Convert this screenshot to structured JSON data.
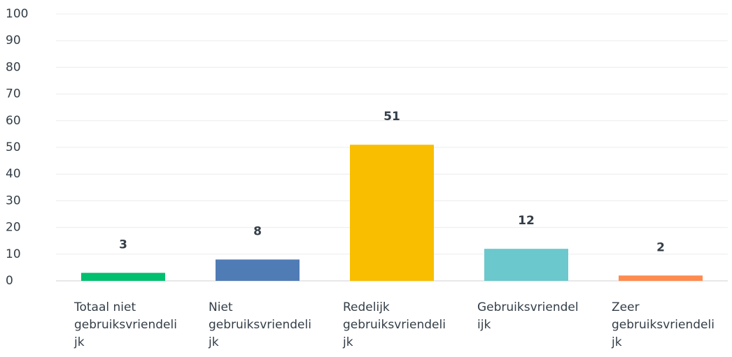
{
  "chart_data": {
    "type": "bar",
    "categories": [
      "Totaal niet gebruiksvriendelijk",
      "Niet gebruiksvriendelijk",
      "Redelijk gebruiksvriendelijk",
      "Gebruiksvriendelijk",
      "Zeer gebruiksvriendelijk"
    ],
    "values": [
      3,
      8,
      51,
      12,
      2
    ],
    "colors": [
      "#00bf6f",
      "#507cb6",
      "#f9be00",
      "#6bc8cd",
      "#ff8b4f"
    ],
    "ylim": [
      0,
      100
    ],
    "yticks": [
      0,
      10,
      20,
      30,
      40,
      50,
      60,
      70,
      80,
      90,
      100
    ],
    "grid": true
  }
}
